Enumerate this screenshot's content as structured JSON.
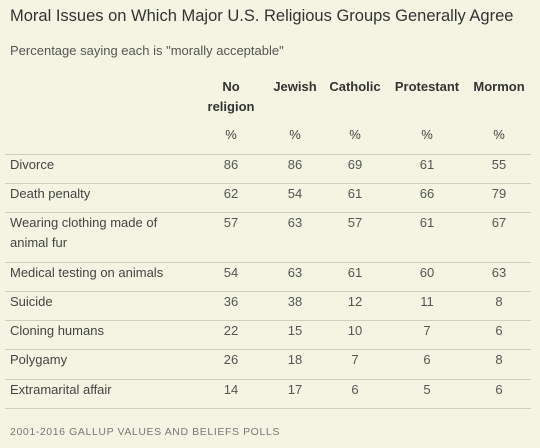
{
  "title": "Moral Issues on Which Major U.S. Religious Groups Generally Agree",
  "subtitle": "Percentage saying each is \"morally acceptable\"",
  "source": "2001-2016 GALLUP VALUES AND BELIEFS POLLS",
  "chart_data": {
    "type": "table",
    "title": "Moral Issues on Which Major U.S. Religious Groups Generally Agree",
    "subtitle": "Percentage saying each is \"morally acceptable\"",
    "columns": [
      {
        "lines": [
          "No",
          "religion"
        ],
        "unit": "%"
      },
      {
        "lines": [
          "Jewish"
        ],
        "unit": "%"
      },
      {
        "lines": [
          "Catholic"
        ],
        "unit": "%"
      },
      {
        "lines": [
          "Protestant"
        ],
        "unit": "%"
      },
      {
        "lines": [
          "Mormon"
        ],
        "unit": "%"
      }
    ],
    "rows": [
      {
        "lines": [
          "Divorce"
        ],
        "values": [
          86,
          86,
          69,
          61,
          55
        ]
      },
      {
        "lines": [
          "Death penalty"
        ],
        "values": [
          62,
          54,
          61,
          66,
          79
        ]
      },
      {
        "lines": [
          "Wearing clothing made of",
          "animal fur"
        ],
        "values": [
          57,
          63,
          57,
          61,
          67
        ]
      },
      {
        "lines": [
          "Medical testing on animals"
        ],
        "values": [
          54,
          63,
          61,
          60,
          63
        ]
      },
      {
        "lines": [
          "Suicide"
        ],
        "values": [
          36,
          38,
          12,
          11,
          8
        ]
      },
      {
        "lines": [
          "Cloning humans"
        ],
        "values": [
          22,
          15,
          10,
          7,
          6
        ]
      },
      {
        "lines": [
          "Polygamy"
        ],
        "values": [
          26,
          18,
          7,
          6,
          8
        ]
      },
      {
        "lines": [
          "Extramarital affair"
        ],
        "values": [
          14,
          17,
          6,
          5,
          6
        ]
      }
    ]
  },
  "colors": {
    "background": "#f4f4e2",
    "text": "#333333",
    "rule": "#cfcfbd"
  }
}
